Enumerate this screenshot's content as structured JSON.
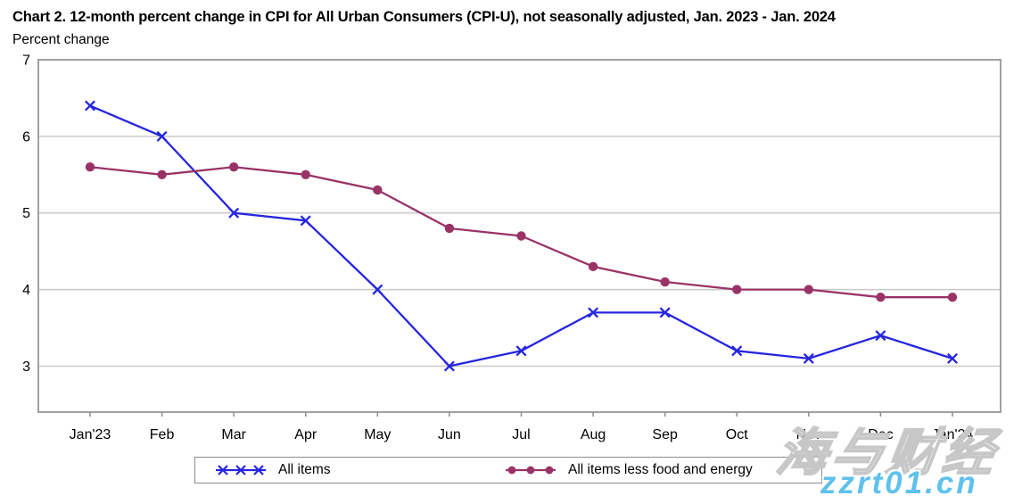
{
  "chart_data": {
    "type": "line",
    "title": "Chart 2. 12-month percent change in CPI for All Urban Consumers (CPI-U), not seasonally adjusted, Jan. 2023 - Jan. 2024",
    "ylabel": "Percent change",
    "xlabel": "",
    "categories": [
      "Jan'23",
      "Feb",
      "Mar",
      "Apr",
      "May",
      "Jun",
      "Jul",
      "Aug",
      "Sep",
      "Oct",
      "Nov",
      "Dec",
      "Jan'24"
    ],
    "series": [
      {
        "name": "All items",
        "marker": "x",
        "color": "#2626de",
        "values": [
          6.4,
          6.0,
          5.0,
          4.9,
          4.0,
          3.0,
          3.2,
          3.7,
          3.7,
          3.2,
          3.1,
          3.4,
          3.1
        ]
      },
      {
        "name": "All items less food and energy",
        "marker": "circle",
        "color": "#993366",
        "values": [
          5.6,
          5.5,
          5.6,
          5.5,
          5.3,
          4.8,
          4.7,
          4.3,
          4.1,
          4.0,
          4.0,
          3.9,
          3.9
        ]
      }
    ],
    "ylim": [
      2.4,
      7
    ],
    "yticks": [
      3,
      4,
      5,
      6,
      7
    ],
    "grid": true,
    "legend_position": "bottom"
  },
  "colors": {
    "grid": "#c9c9c9",
    "frame": "#a0a0a0",
    "tick": "#8c8c8c",
    "text": "#000000",
    "watermark_blue": "#5fc1ec"
  },
  "watermark": {
    "line1": "海与财经",
    "line2": "zzrt01.cn"
  }
}
